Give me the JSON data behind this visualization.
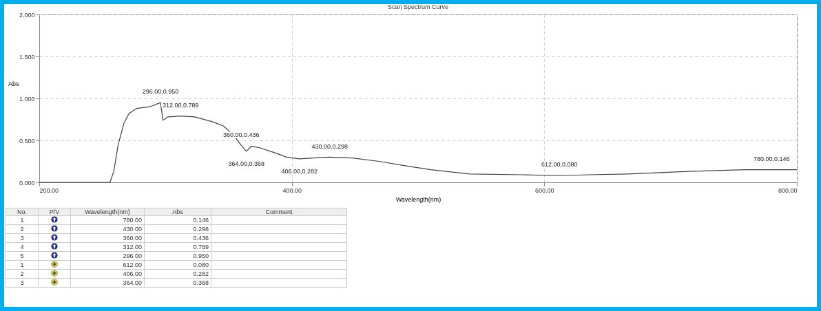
{
  "chart_data": {
    "type": "line",
    "title": "Scan Spectrum Curve",
    "xlabel": "Wavelength(nm)",
    "ylabel": "Abs",
    "xlim": [
      200,
      800
    ],
    "xticks": [
      {
        "value": 200,
        "label": "200.00"
      },
      {
        "value": 400,
        "label": "400.00"
      },
      {
        "value": 600,
        "label": "600.00"
      },
      {
        "value": 800,
        "label": "800.00"
      }
    ],
    "ylim": [
      0,
      2
    ],
    "yticks": [
      {
        "value": 0,
        "label": "0.000"
      },
      {
        "value": 0.5,
        "label": "0.500"
      },
      {
        "value": 1,
        "label": "1.000"
      },
      {
        "value": 1.5,
        "label": "1.500"
      },
      {
        "value": 2,
        "label": "2.000"
      }
    ],
    "grid": true,
    "marker": "none",
    "line_style": "solid",
    "series": [
      {
        "color": "#404040",
        "x": [
          200,
          256,
          259,
          262.5,
          267,
          271,
          277,
          287.5,
          296,
          298,
          302,
          312,
          323,
          337.5,
          346,
          354,
          360,
          364,
          368,
          375,
          385,
          396,
          406,
          417,
          430,
          448,
          469,
          489,
          510,
          541,
          583,
          612,
          635,
          666,
          714,
          759,
          780,
          800
        ],
        "values": [
          0,
          0,
          0.13,
          0.45,
          0.7,
          0.82,
          0.88,
          0.9,
          0.95,
          0.74,
          0.78,
          0.79,
          0.78,
          0.72,
          0.67,
          0.56,
          0.44,
          0.37,
          0.43,
          0.41,
          0.36,
          0.3,
          0.28,
          0.29,
          0.3,
          0.29,
          0.25,
          0.2,
          0.15,
          0.1,
          0.09,
          0.08,
          0.09,
          0.1,
          0.13,
          0.15,
          0.15,
          0.15
        ]
      }
    ],
    "annotations": [
      {
        "text": "780.00,0.146",
        "x": 780,
        "y": 0.146
      },
      {
        "text": "430.00,0.298",
        "x": 430,
        "y": 0.298
      },
      {
        "text": "360.00,0.436",
        "x": 360,
        "y": 0.436
      },
      {
        "text": "312.00,0.789",
        "x": 312,
        "y": 0.789
      },
      {
        "text": "296.00,0.950",
        "x": 296,
        "y": 0.95
      },
      {
        "text": "612.00,0.080",
        "x": 612,
        "y": 0.08
      },
      {
        "text": "406.00,0.282",
        "x": 406,
        "y": 0.282
      },
      {
        "text": "364.00,0.368",
        "x": 364,
        "y": 0.368
      },
      "No.",
      "P/V",
      "Wavelength(nm)",
      "Abs",
      "Comment",
      "1",
      "780.00",
      "0.146",
      "2",
      "430.00",
      "0.298",
      "3",
      "360.00",
      "0.436",
      "4",
      "312.00",
      "0.789",
      "5",
      "296.00",
      "0.950",
      "1",
      "612.00",
      "0.080",
      "2",
      "406.00",
      "0.282",
      "3",
      "364.00",
      "0.368"
    ]
  }
}
